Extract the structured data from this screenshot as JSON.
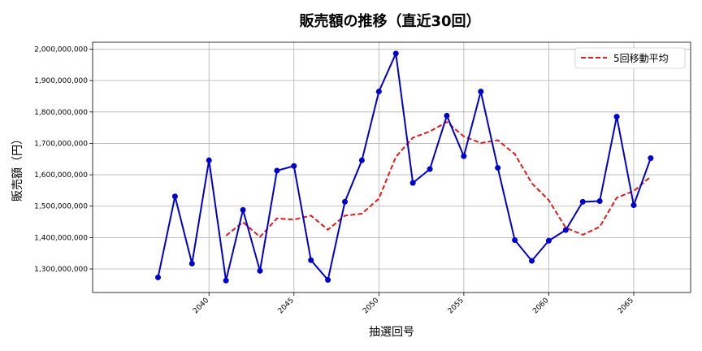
{
  "chart_data": {
    "type": "line",
    "title": "販売額の推移（直近30回）",
    "xlabel": "抽選回号",
    "ylabel": "販売額（円）",
    "x": [
      2037,
      2038,
      2039,
      2040,
      2041,
      2042,
      2043,
      2044,
      2045,
      2046,
      2047,
      2048,
      2049,
      2050,
      2051,
      2052,
      2053,
      2054,
      2055,
      2056,
      2057,
      2058,
      2059,
      2060,
      2061,
      2062,
      2063,
      2064,
      2065,
      2066
    ],
    "xlim": [
      2033.15,
      2068.35
    ],
    "ylim": [
      1225000000,
      2022000000
    ],
    "x_ticks": [
      "2040",
      "2045",
      "2050",
      "2055",
      "2060",
      "2065"
    ],
    "y_ticks": [
      "1,300,000,000",
      "1,400,000,000",
      "1,500,000,000",
      "1,600,000,000",
      "1,700,000,000",
      "1,800,000,000",
      "1,900,000,000",
      "2,000,000,000"
    ],
    "grid": true,
    "legend_position": "top-right",
    "series": [
      {
        "values": [
          1273000000,
          1531000000,
          1317000000,
          1646000000,
          1263000000,
          1488000000,
          1294000000,
          1613000000,
          1628000000,
          1328000000,
          1265000000,
          1514000000,
          1646000000,
          1865000000,
          1986000000,
          1574000000,
          1618000000,
          1788000000,
          1659000000,
          1865000000,
          1622000000,
          1392000000,
          1326000000,
          1390000000,
          1424000000,
          1514000000,
          1516000000,
          1785000000,
          1503000000,
          1653000000
        ],
        "color": "#0000cc",
        "style": "solid-with-markers"
      },
      {
        "name": "5回移動平均",
        "values": [
          null,
          null,
          null,
          null,
          1406000000,
          1449000000,
          1402000000,
          1461000000,
          1457000000,
          1470000000,
          1425000000,
          1470000000,
          1476000000,
          1524000000,
          1657000000,
          1718000000,
          1738000000,
          1768000000,
          1722000000,
          1701000000,
          1710000000,
          1666000000,
          1573000000,
          1519000000,
          1431000000,
          1409000000,
          1434000000,
          1527000000,
          1548000000,
          1594000000
        ],
        "color": "#e31a1c",
        "style": "dashed"
      }
    ]
  }
}
